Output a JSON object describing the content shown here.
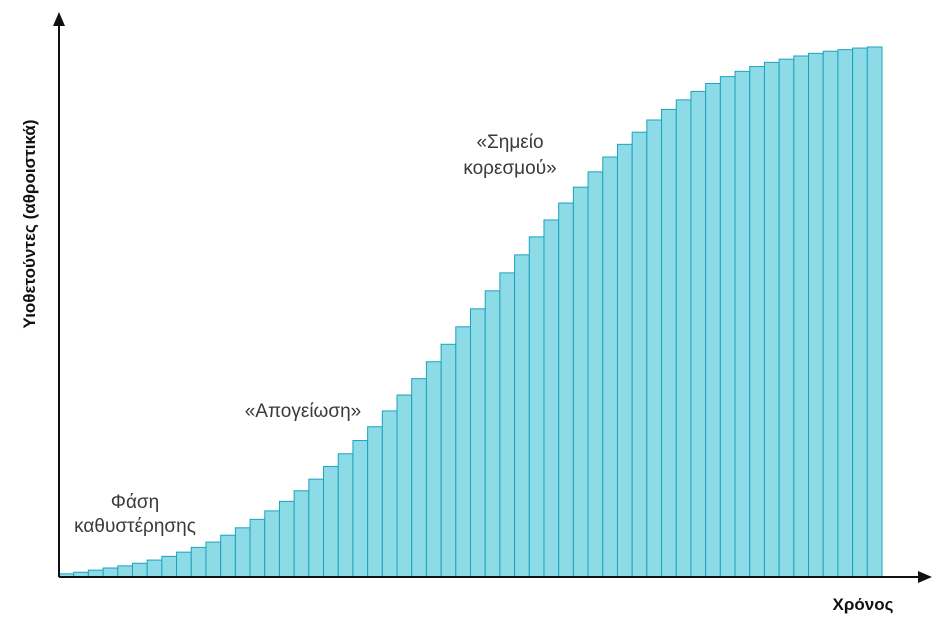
{
  "chart_data": {
    "type": "bar",
    "xlabel": "Χρόνος",
    "ylabel": "Υιοθετούντες (αθροιστικά)",
    "ylim": [
      0,
      100
    ],
    "grid": false,
    "bar_fill": "#8ddbe7",
    "bar_stroke": "#1aa3bd",
    "axis_color": "#111111",
    "annotations": [
      {
        "id": "lag",
        "lines": [
          "Φάση",
          "καθυστέρησης"
        ]
      },
      {
        "id": "takeoff",
        "lines": [
          "«Απογείωση»"
        ]
      },
      {
        "id": "saturation",
        "lines": [
          "«Σημείο",
          "κορεσμού»"
        ]
      }
    ],
    "series": [
      {
        "values": [
          0.6,
          0.9,
          1.3,
          1.7,
          2.1,
          2.6,
          3.2,
          3.9,
          4.7,
          5.6,
          6.6,
          7.9,
          9.3,
          10.9,
          12.5,
          14.3,
          16.3,
          18.5,
          20.9,
          23.3,
          25.8,
          28.4,
          31.4,
          34.4,
          37.5,
          40.7,
          44.0,
          47.3,
          50.7,
          54.1,
          57.5,
          60.9,
          64.3,
          67.5,
          70.7,
          73.7,
          76.6,
          79.4,
          81.8,
          84.1,
          86.4,
          88.4,
          90.2,
          91.8,
          93.3,
          94.6,
          95.6,
          96.5,
          97.3,
          97.9,
          98.5,
          99.0,
          99.4,
          99.7,
          100.0,
          100.2
        ]
      }
    ]
  }
}
